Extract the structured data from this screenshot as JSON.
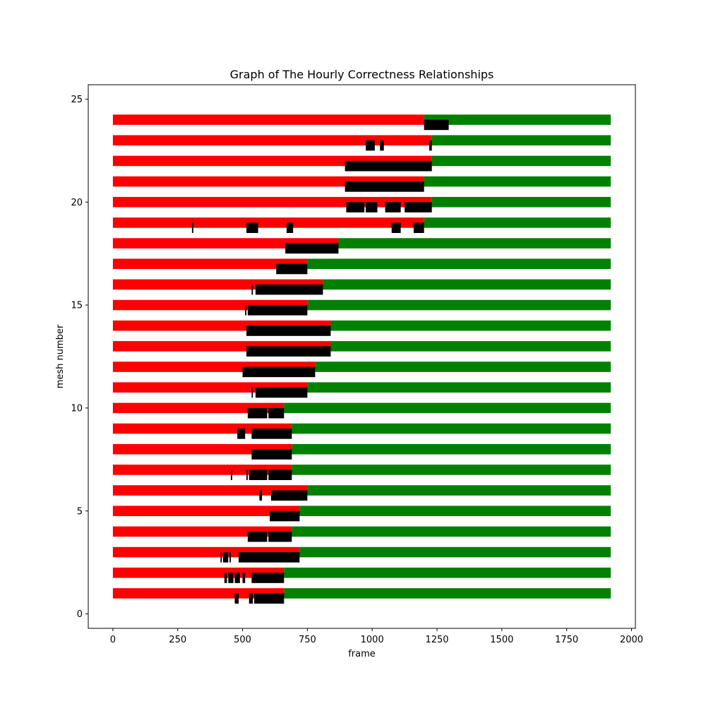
{
  "chart_data": {
    "type": "bar",
    "orientation": "horizontal",
    "title": "Graph of The Hourly Correctness Relationships",
    "xlabel": "frame",
    "ylabel": "mesh number",
    "xlim": [
      -95,
      2015
    ],
    "ylim": [
      -0.7,
      25.7
    ],
    "xticks": [
      0,
      250,
      500,
      750,
      1000,
      1250,
      1500,
      1750,
      2000
    ],
    "yticks": [
      0,
      5,
      10,
      15,
      20,
      25
    ],
    "grid": false,
    "legend": "none",
    "colors": {
      "incorrect": "#ff0000",
      "correct": "#008000",
      "marker": "#000000"
    },
    "bar_height": 0.5,
    "series": [
      {
        "mesh": 1,
        "start": 0,
        "end": 1920,
        "transition": 660
      },
      {
        "mesh": 2,
        "start": 0,
        "end": 1920,
        "transition": 660
      },
      {
        "mesh": 3,
        "start": 0,
        "end": 1920,
        "transition": 720
      },
      {
        "mesh": 4,
        "start": 0,
        "end": 1920,
        "transition": 690
      },
      {
        "mesh": 5,
        "start": 0,
        "end": 1920,
        "transition": 720
      },
      {
        "mesh": 6,
        "start": 0,
        "end": 1920,
        "transition": 750
      },
      {
        "mesh": 7,
        "start": 0,
        "end": 1920,
        "transition": 690
      },
      {
        "mesh": 8,
        "start": 0,
        "end": 1920,
        "transition": 690
      },
      {
        "mesh": 9,
        "start": 0,
        "end": 1920,
        "transition": 690
      },
      {
        "mesh": 10,
        "start": 0,
        "end": 1920,
        "transition": 660
      },
      {
        "mesh": 11,
        "start": 0,
        "end": 1920,
        "transition": 750
      },
      {
        "mesh": 12,
        "start": 0,
        "end": 1920,
        "transition": 780
      },
      {
        "mesh": 13,
        "start": 0,
        "end": 1920,
        "transition": 840
      },
      {
        "mesh": 14,
        "start": 0,
        "end": 1920,
        "transition": 840
      },
      {
        "mesh": 15,
        "start": 0,
        "end": 1920,
        "transition": 750
      },
      {
        "mesh": 16,
        "start": 0,
        "end": 1920,
        "transition": 810
      },
      {
        "mesh": 17,
        "start": 0,
        "end": 1920,
        "transition": 750
      },
      {
        "mesh": 18,
        "start": 0,
        "end": 1920,
        "transition": 870
      },
      {
        "mesh": 19,
        "start": 0,
        "end": 1920,
        "transition": 1200
      },
      {
        "mesh": 20,
        "start": 0,
        "end": 1920,
        "transition": 1230
      },
      {
        "mesh": 21,
        "start": 0,
        "end": 1920,
        "transition": 1200
      },
      {
        "mesh": 22,
        "start": 0,
        "end": 1920,
        "transition": 1230
      },
      {
        "mesh": 23,
        "start": 0,
        "end": 1920,
        "transition": 1230
      },
      {
        "mesh": 24,
        "start": 0,
        "end": 1920,
        "transition": 1200
      }
    ],
    "markers": [
      {
        "y": 0.75,
        "segments": [
          [
            470,
            485
          ],
          [
            525,
            540
          ],
          [
            545,
            660
          ]
        ]
      },
      {
        "y": 1.75,
        "segments": [
          [
            430,
            440
          ],
          [
            445,
            465
          ],
          [
            470,
            490
          ],
          [
            500,
            510
          ],
          [
            535,
            660
          ]
        ]
      },
      {
        "y": 2.75,
        "segments": [
          [
            415,
            420
          ],
          [
            425,
            445
          ],
          [
            450,
            455
          ],
          [
            485,
            720
          ]
        ]
      },
      {
        "y": 3.75,
        "segments": [
          [
            520,
            595
          ],
          [
            600,
            690
          ]
        ]
      },
      {
        "y": 4.75,
        "segments": [
          [
            605,
            720
          ]
        ]
      },
      {
        "y": 5.75,
        "segments": [
          [
            565,
            575
          ],
          [
            610,
            750
          ]
        ]
      },
      {
        "y": 6.75,
        "segments": [
          [
            455,
            460
          ],
          [
            515,
            520
          ],
          [
            525,
            595
          ],
          [
            600,
            690
          ]
        ]
      },
      {
        "y": 7.75,
        "segments": [
          [
            535,
            690
          ]
        ]
      },
      {
        "y": 8.75,
        "segments": [
          [
            480,
            510
          ],
          [
            535,
            690
          ]
        ]
      },
      {
        "y": 9.75,
        "segments": [
          [
            520,
            595
          ],
          [
            600,
            660
          ]
        ]
      },
      {
        "y": 10.75,
        "segments": [
          [
            535,
            540
          ],
          [
            550,
            750
          ]
        ]
      },
      {
        "y": 11.75,
        "segments": [
          [
            500,
            780
          ]
        ]
      },
      {
        "y": 12.75,
        "segments": [
          [
            515,
            840
          ]
        ]
      },
      {
        "y": 13.75,
        "segments": [
          [
            515,
            840
          ]
        ]
      },
      {
        "y": 14.75,
        "segments": [
          [
            510,
            515
          ],
          [
            520,
            750
          ]
        ]
      },
      {
        "y": 15.75,
        "segments": [
          [
            535,
            540
          ],
          [
            550,
            810
          ]
        ]
      },
      {
        "y": 16.75,
        "segments": [
          [
            630,
            750
          ]
        ]
      },
      {
        "y": 17.75,
        "segments": [
          [
            665,
            870
          ]
        ]
      },
      {
        "y": 18.75,
        "segments": [
          [
            305,
            310
          ],
          [
            515,
            560
          ],
          [
            670,
            695
          ],
          [
            1075,
            1110
          ],
          [
            1160,
            1200
          ]
        ]
      },
      {
        "y": 19.75,
        "segments": [
          [
            900,
            970
          ],
          [
            975,
            1020
          ],
          [
            1050,
            1110
          ],
          [
            1125,
            1230
          ]
        ]
      },
      {
        "y": 20.75,
        "segments": [
          [
            895,
            1200
          ]
        ]
      },
      {
        "y": 21.75,
        "segments": [
          [
            895,
            1230
          ]
        ]
      },
      {
        "y": 22.75,
        "segments": [
          [
            975,
            1010
          ],
          [
            1030,
            1045
          ],
          [
            1220,
            1230
          ]
        ]
      },
      {
        "y": 23.75,
        "segments": [
          [
            1200,
            1295
          ]
        ]
      }
    ]
  }
}
